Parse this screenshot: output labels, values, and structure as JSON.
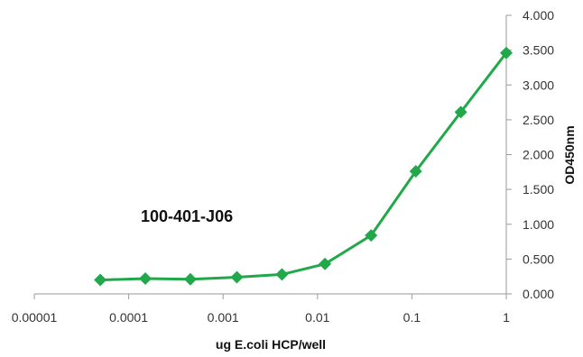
{
  "chart_data": {
    "type": "line",
    "title": "",
    "annotation": "100-401-J06",
    "xlabel": "ug E.coli HCP/well",
    "ylabel": "OD450nm",
    "xscale": "log",
    "xlim": [
      1e-05,
      1
    ],
    "ylim": [
      0,
      4
    ],
    "y_axis_position": "right",
    "grid": false,
    "legend": "none",
    "x_ticks": [
      {
        "value": 1e-05,
        "label": "0.00001"
      },
      {
        "value": 0.0001,
        "label": "0.0001"
      },
      {
        "value": 0.001,
        "label": "0.001"
      },
      {
        "value": 0.01,
        "label": "0.01"
      },
      {
        "value": 0.1,
        "label": "0.1"
      },
      {
        "value": 1,
        "label": "1"
      }
    ],
    "y_ticks": [
      {
        "value": 0,
        "label": "0.000"
      },
      {
        "value": 0.5,
        "label": "0.500"
      },
      {
        "value": 1,
        "label": "1.000"
      },
      {
        "value": 1.5,
        "label": "1.500"
      },
      {
        "value": 2,
        "label": "2.000"
      },
      {
        "value": 2.5,
        "label": "2.500"
      },
      {
        "value": 3,
        "label": "3.000"
      },
      {
        "value": 3.5,
        "label": "3.500"
      },
      {
        "value": 4,
        "label": "4.000"
      }
    ],
    "series": [
      {
        "color": "#21a84b",
        "marker": "diamond",
        "x": [
          5e-05,
          0.00015,
          0.00045,
          0.0014,
          0.0042,
          0.012,
          0.037,
          0.11,
          0.33,
          1.0
        ],
        "y": [
          0.2,
          0.22,
          0.21,
          0.24,
          0.28,
          0.43,
          0.84,
          1.76,
          2.61,
          3.46
        ]
      }
    ]
  }
}
